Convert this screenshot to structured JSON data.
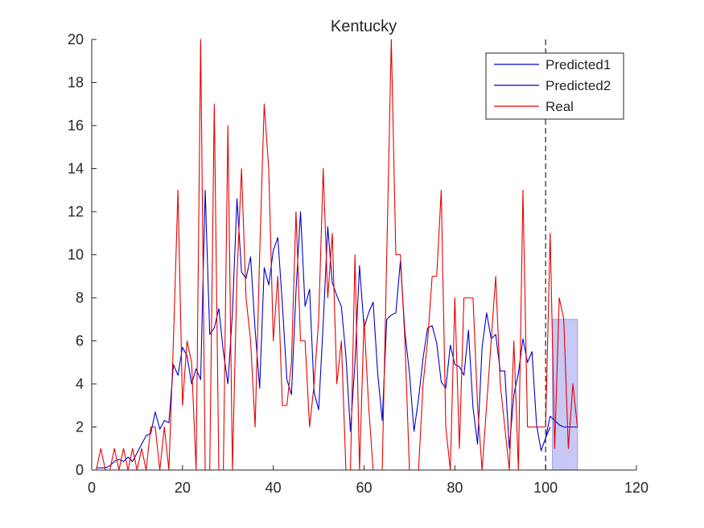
{
  "chart_data": {
    "type": "line",
    "title": "Kentucky",
    "xlabel": "",
    "ylabel": "",
    "xlim": [
      0,
      120
    ],
    "ylim": [
      0,
      20
    ],
    "xticks": [
      0,
      20,
      40,
      60,
      80,
      100,
      120
    ],
    "yticks": [
      0,
      2,
      4,
      6,
      8,
      10,
      12,
      14,
      16,
      18,
      20
    ],
    "grid": false,
    "legend_position": "top-right",
    "forecast_start": 100,
    "forecast_band": {
      "x": [
        101.5,
        107
      ],
      "y": [
        0,
        7
      ],
      "color": "#c8c8f6"
    },
    "series": [
      {
        "name": "Predicted1",
        "color": "#0000cc",
        "x": [
          1,
          2,
          3,
          4,
          5,
          6,
          7,
          8,
          9,
          10,
          11,
          12,
          13,
          14,
          15,
          16,
          17,
          18,
          19,
          20,
          21,
          22,
          23,
          24,
          25,
          26,
          27,
          28,
          29,
          30,
          31,
          32,
          33,
          34,
          35,
          36,
          37,
          38,
          39,
          40,
          41,
          42,
          43,
          44,
          45,
          46,
          47,
          48,
          49,
          50,
          51,
          52,
          53,
          54,
          55,
          56,
          57,
          58,
          59,
          60,
          61,
          62,
          63,
          64,
          65,
          66,
          67,
          68,
          69,
          70,
          71,
          72,
          73,
          74,
          75,
          76,
          77,
          78,
          79,
          80,
          81,
          82,
          83,
          84,
          85,
          86,
          87,
          88,
          89,
          90,
          91,
          92,
          93,
          94,
          95,
          96,
          97,
          98,
          99,
          100,
          101
        ],
        "values": [
          0.1,
          0.1,
          0.1,
          0.2,
          0.4,
          0.5,
          0.4,
          0.6,
          0.4,
          0.8,
          1.2,
          1.6,
          1.7,
          2.7,
          1.9,
          2.3,
          2.2,
          4.9,
          4.4,
          5.7,
          5.3,
          4.0,
          4.7,
          4.2,
          13.0,
          6.3,
          6.6,
          7.5,
          5.5,
          4.0,
          7.3,
          12.6,
          9.2,
          8.9,
          9.9,
          6.5,
          3.8,
          9.4,
          8.6,
          10.2,
          10.8,
          7.7,
          4.2,
          3.5,
          8.3,
          12.0,
          7.6,
          8.4,
          3.6,
          2.8,
          6.8,
          11.3,
          8.7,
          8.1,
          7.6,
          5.3,
          1.8,
          5.0,
          9.5,
          6.6,
          7.3,
          7.8,
          4.5,
          2.3,
          7.0,
          7.2,
          7.3,
          9.7,
          6.4,
          4.5,
          1.8,
          3.3,
          5.2,
          6.6,
          6.7,
          5.9,
          4.1,
          3.8,
          5.8,
          4.9,
          4.8,
          4.4,
          6.5,
          2.9,
          1.2,
          5.7,
          7.3,
          6.1,
          6.3,
          4.6,
          4.6,
          1.0,
          3.5,
          4.5,
          6.1,
          5.0,
          5.5,
          2.1,
          0.9,
          1.5,
          2.0
        ]
      },
      {
        "name": "Predicted2",
        "color": "#0000cc",
        "x": [
          100,
          101,
          102,
          103,
          104,
          105,
          106,
          107
        ],
        "values": [
          1.5,
          2.5,
          2.3,
          2.1,
          2.0,
          2.0,
          2.0,
          2.0
        ]
      },
      {
        "name": "Real",
        "color": "#e60000",
        "x": [
          1,
          2,
          3,
          4,
          5,
          6,
          7,
          8,
          9,
          10,
          11,
          12,
          13,
          14,
          15,
          16,
          17,
          18,
          19,
          20,
          21,
          22,
          23,
          24,
          25,
          26,
          27,
          28,
          29,
          30,
          31,
          32,
          33,
          34,
          35,
          36,
          37,
          38,
          39,
          40,
          41,
          42,
          43,
          44,
          45,
          46,
          47,
          48,
          49,
          50,
          51,
          52,
          53,
          54,
          55,
          56,
          57,
          58,
          59,
          60,
          61,
          62,
          63,
          64,
          65,
          66,
          67,
          68,
          69,
          70,
          71,
          72,
          73,
          74,
          75,
          76,
          77,
          78,
          79,
          80,
          81,
          82,
          83,
          84,
          85,
          86,
          87,
          88,
          89,
          90,
          91,
          92,
          93,
          94,
          95,
          96,
          97,
          98,
          99,
          100,
          101,
          102,
          103,
          104,
          105,
          106,
          107
        ],
        "values": [
          0,
          1,
          0,
          0,
          1,
          0,
          1,
          0,
          1,
          0,
          1,
          0,
          2,
          2,
          0,
          2,
          0,
          6,
          13,
          3,
          6,
          5,
          0,
          20,
          0,
          0,
          17,
          0,
          0,
          16,
          0,
          9,
          14,
          8,
          6,
          2,
          10,
          17,
          14,
          6,
          9,
          3,
          3,
          5,
          12,
          6,
          6,
          2,
          4,
          7,
          14,
          8,
          11,
          4,
          6,
          0,
          0,
          10,
          0,
          7,
          3,
          0,
          0,
          0,
          10,
          20,
          10,
          10,
          6,
          0,
          0,
          0,
          4,
          6,
          9,
          9,
          13,
          2,
          0,
          8,
          1,
          8,
          8,
          8,
          3,
          0,
          3,
          6,
          9,
          4,
          2,
          0,
          6,
          0,
          13,
          2,
          2,
          2,
          2,
          2,
          11,
          1,
          8,
          7,
          1,
          4,
          2
        ]
      }
    ]
  }
}
